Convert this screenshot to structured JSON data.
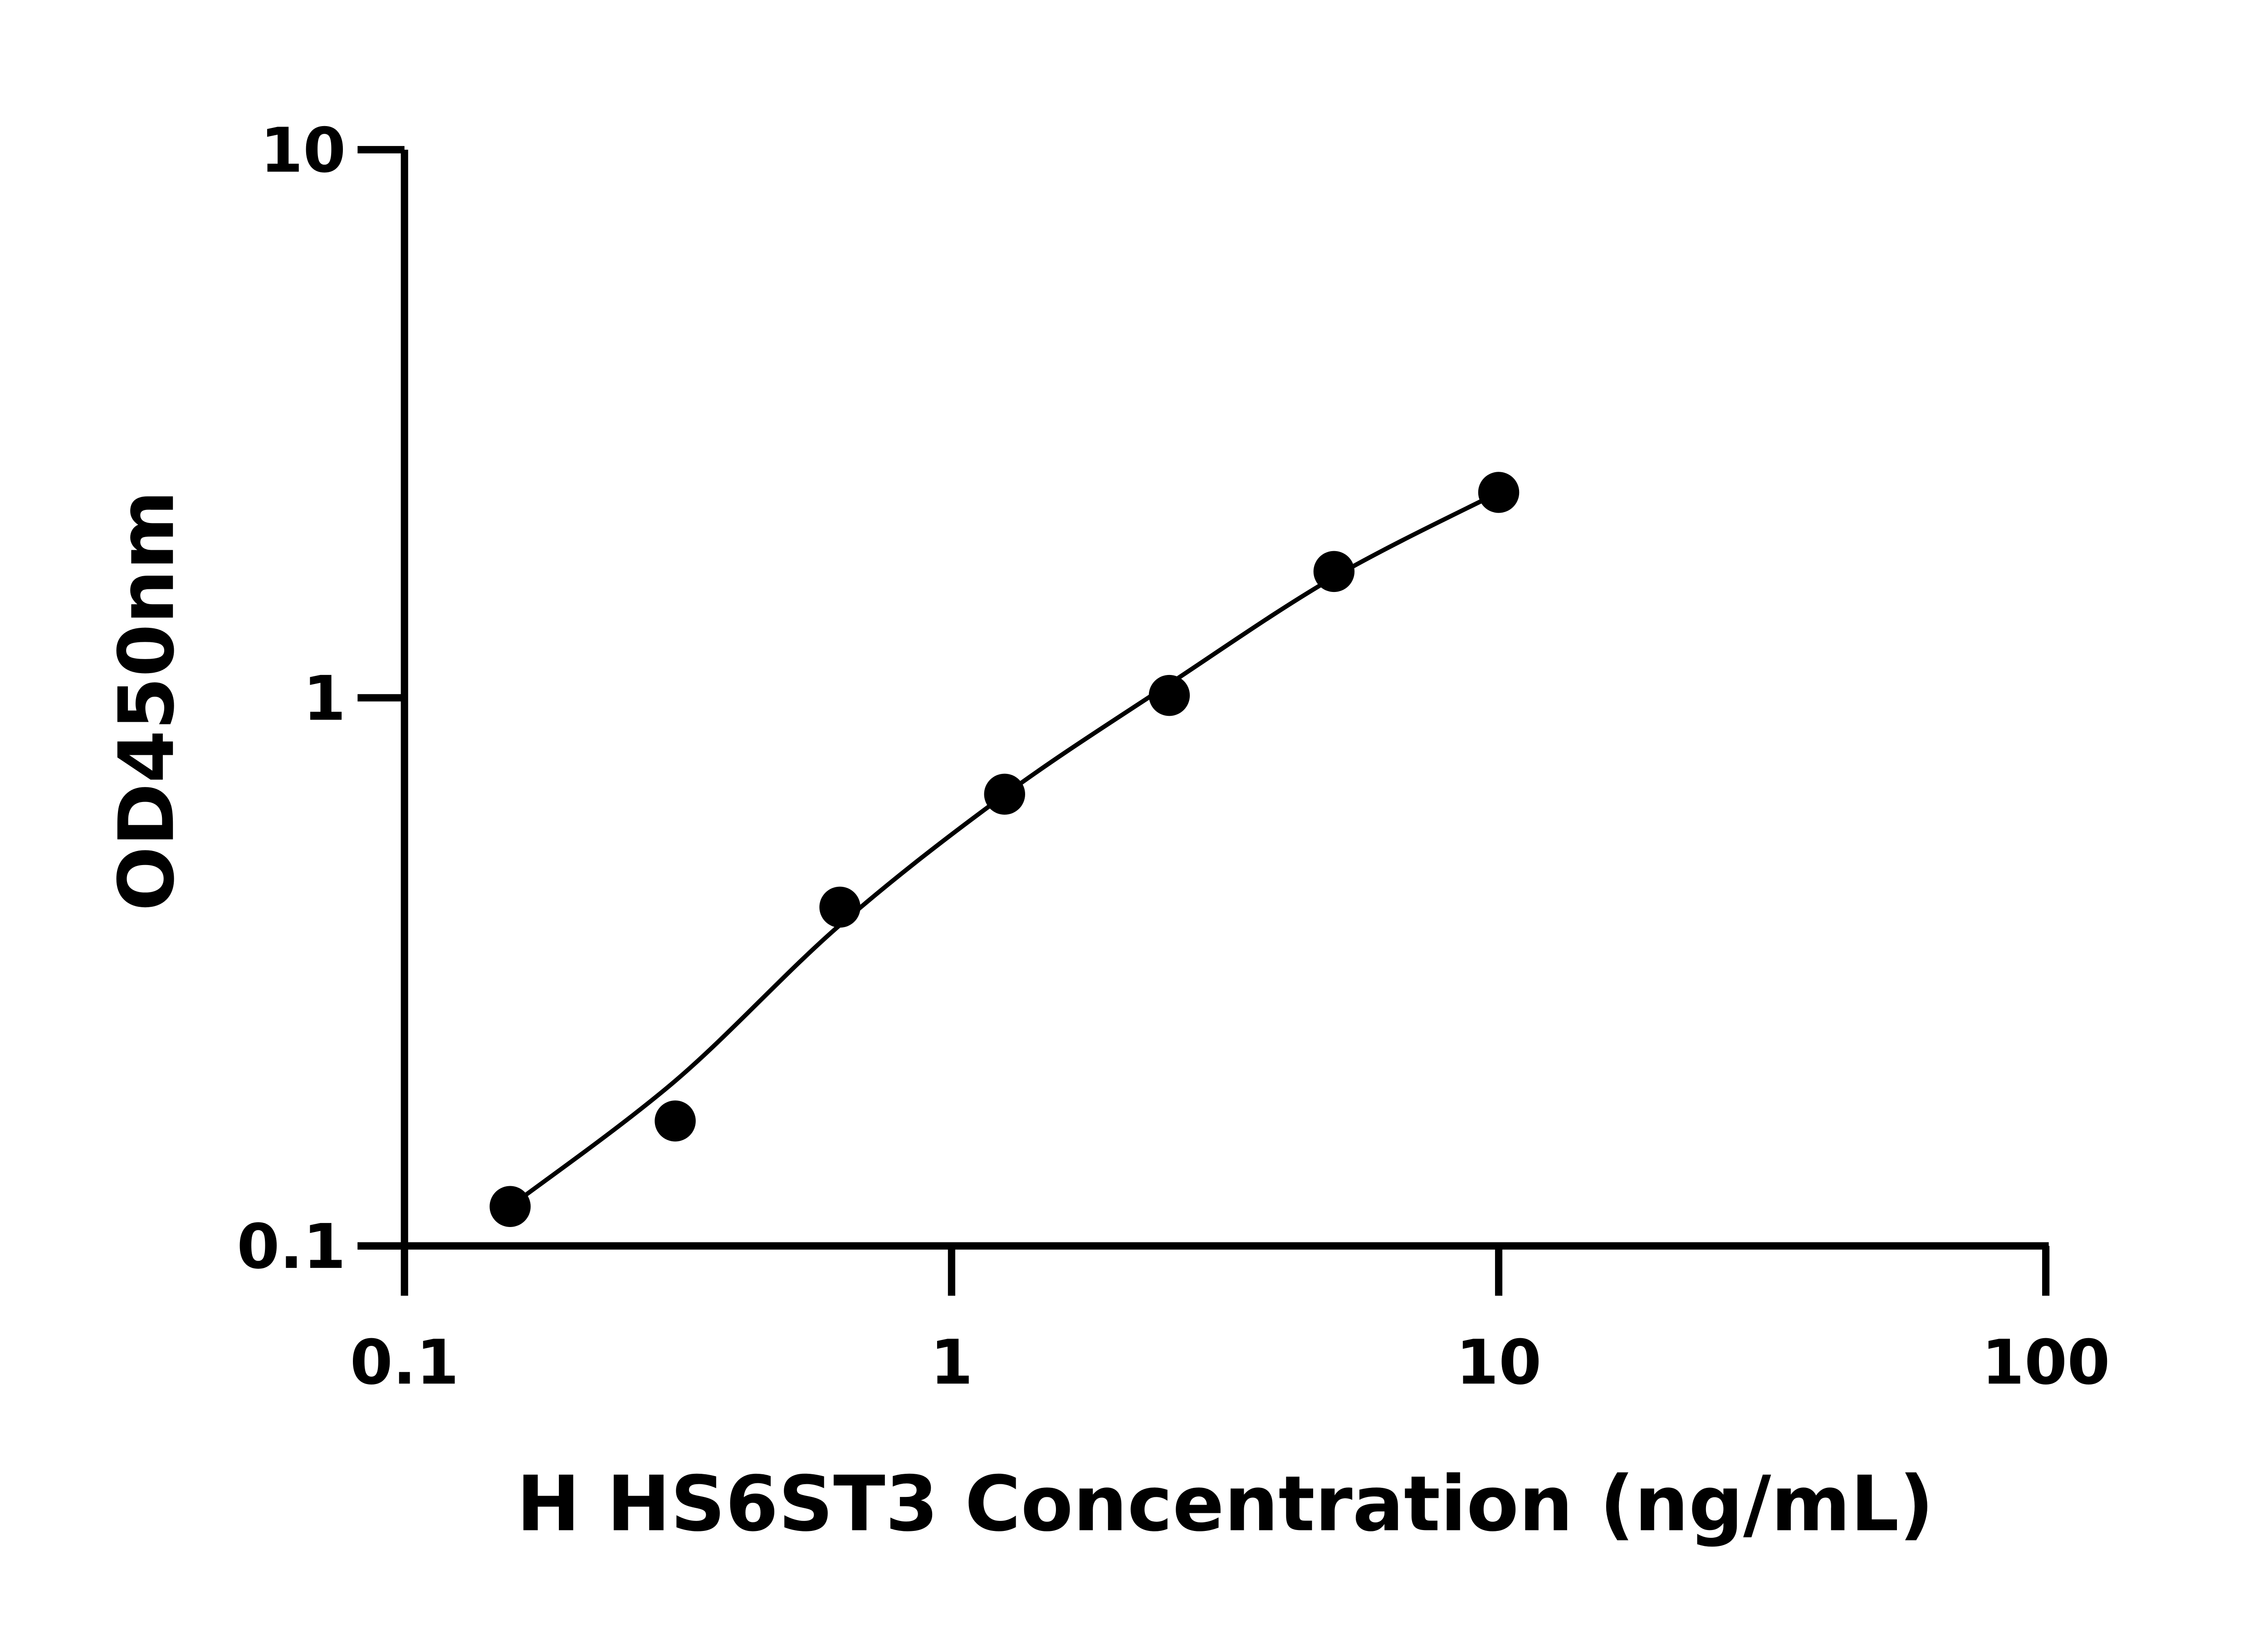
{
  "chart_data": {
    "type": "scatter",
    "title": "",
    "xlabel": "H HS6ST3 Concentration (ng/mL)",
    "ylabel": "OD450nm",
    "x_scale": "log",
    "y_scale": "log",
    "xlim": [
      0.1,
      100
    ],
    "ylim": [
      0.1,
      10
    ],
    "x_ticks": [
      "0.1",
      "1",
      "10",
      "100"
    ],
    "y_ticks": [
      "0.1",
      "1",
      "10"
    ],
    "grid": false,
    "legend": "none",
    "series": [
      {
        "style": "points",
        "color": "#000000",
        "x": [
          0.156,
          0.3125,
          0.625,
          1.25,
          2.5,
          5,
          10
        ],
        "y": [
          0.118,
          0.169,
          0.415,
          0.667,
          1.01,
          1.7,
          2.37
        ]
      },
      {
        "style": "fit-curve",
        "color": "#000000",
        "x": [
          0.156,
          0.3125,
          0.625,
          1.25,
          2.5,
          5,
          10
        ],
        "y": [
          0.118,
          0.2,
          0.385,
          0.665,
          1.06,
          1.66,
          2.37
        ]
      }
    ]
  }
}
